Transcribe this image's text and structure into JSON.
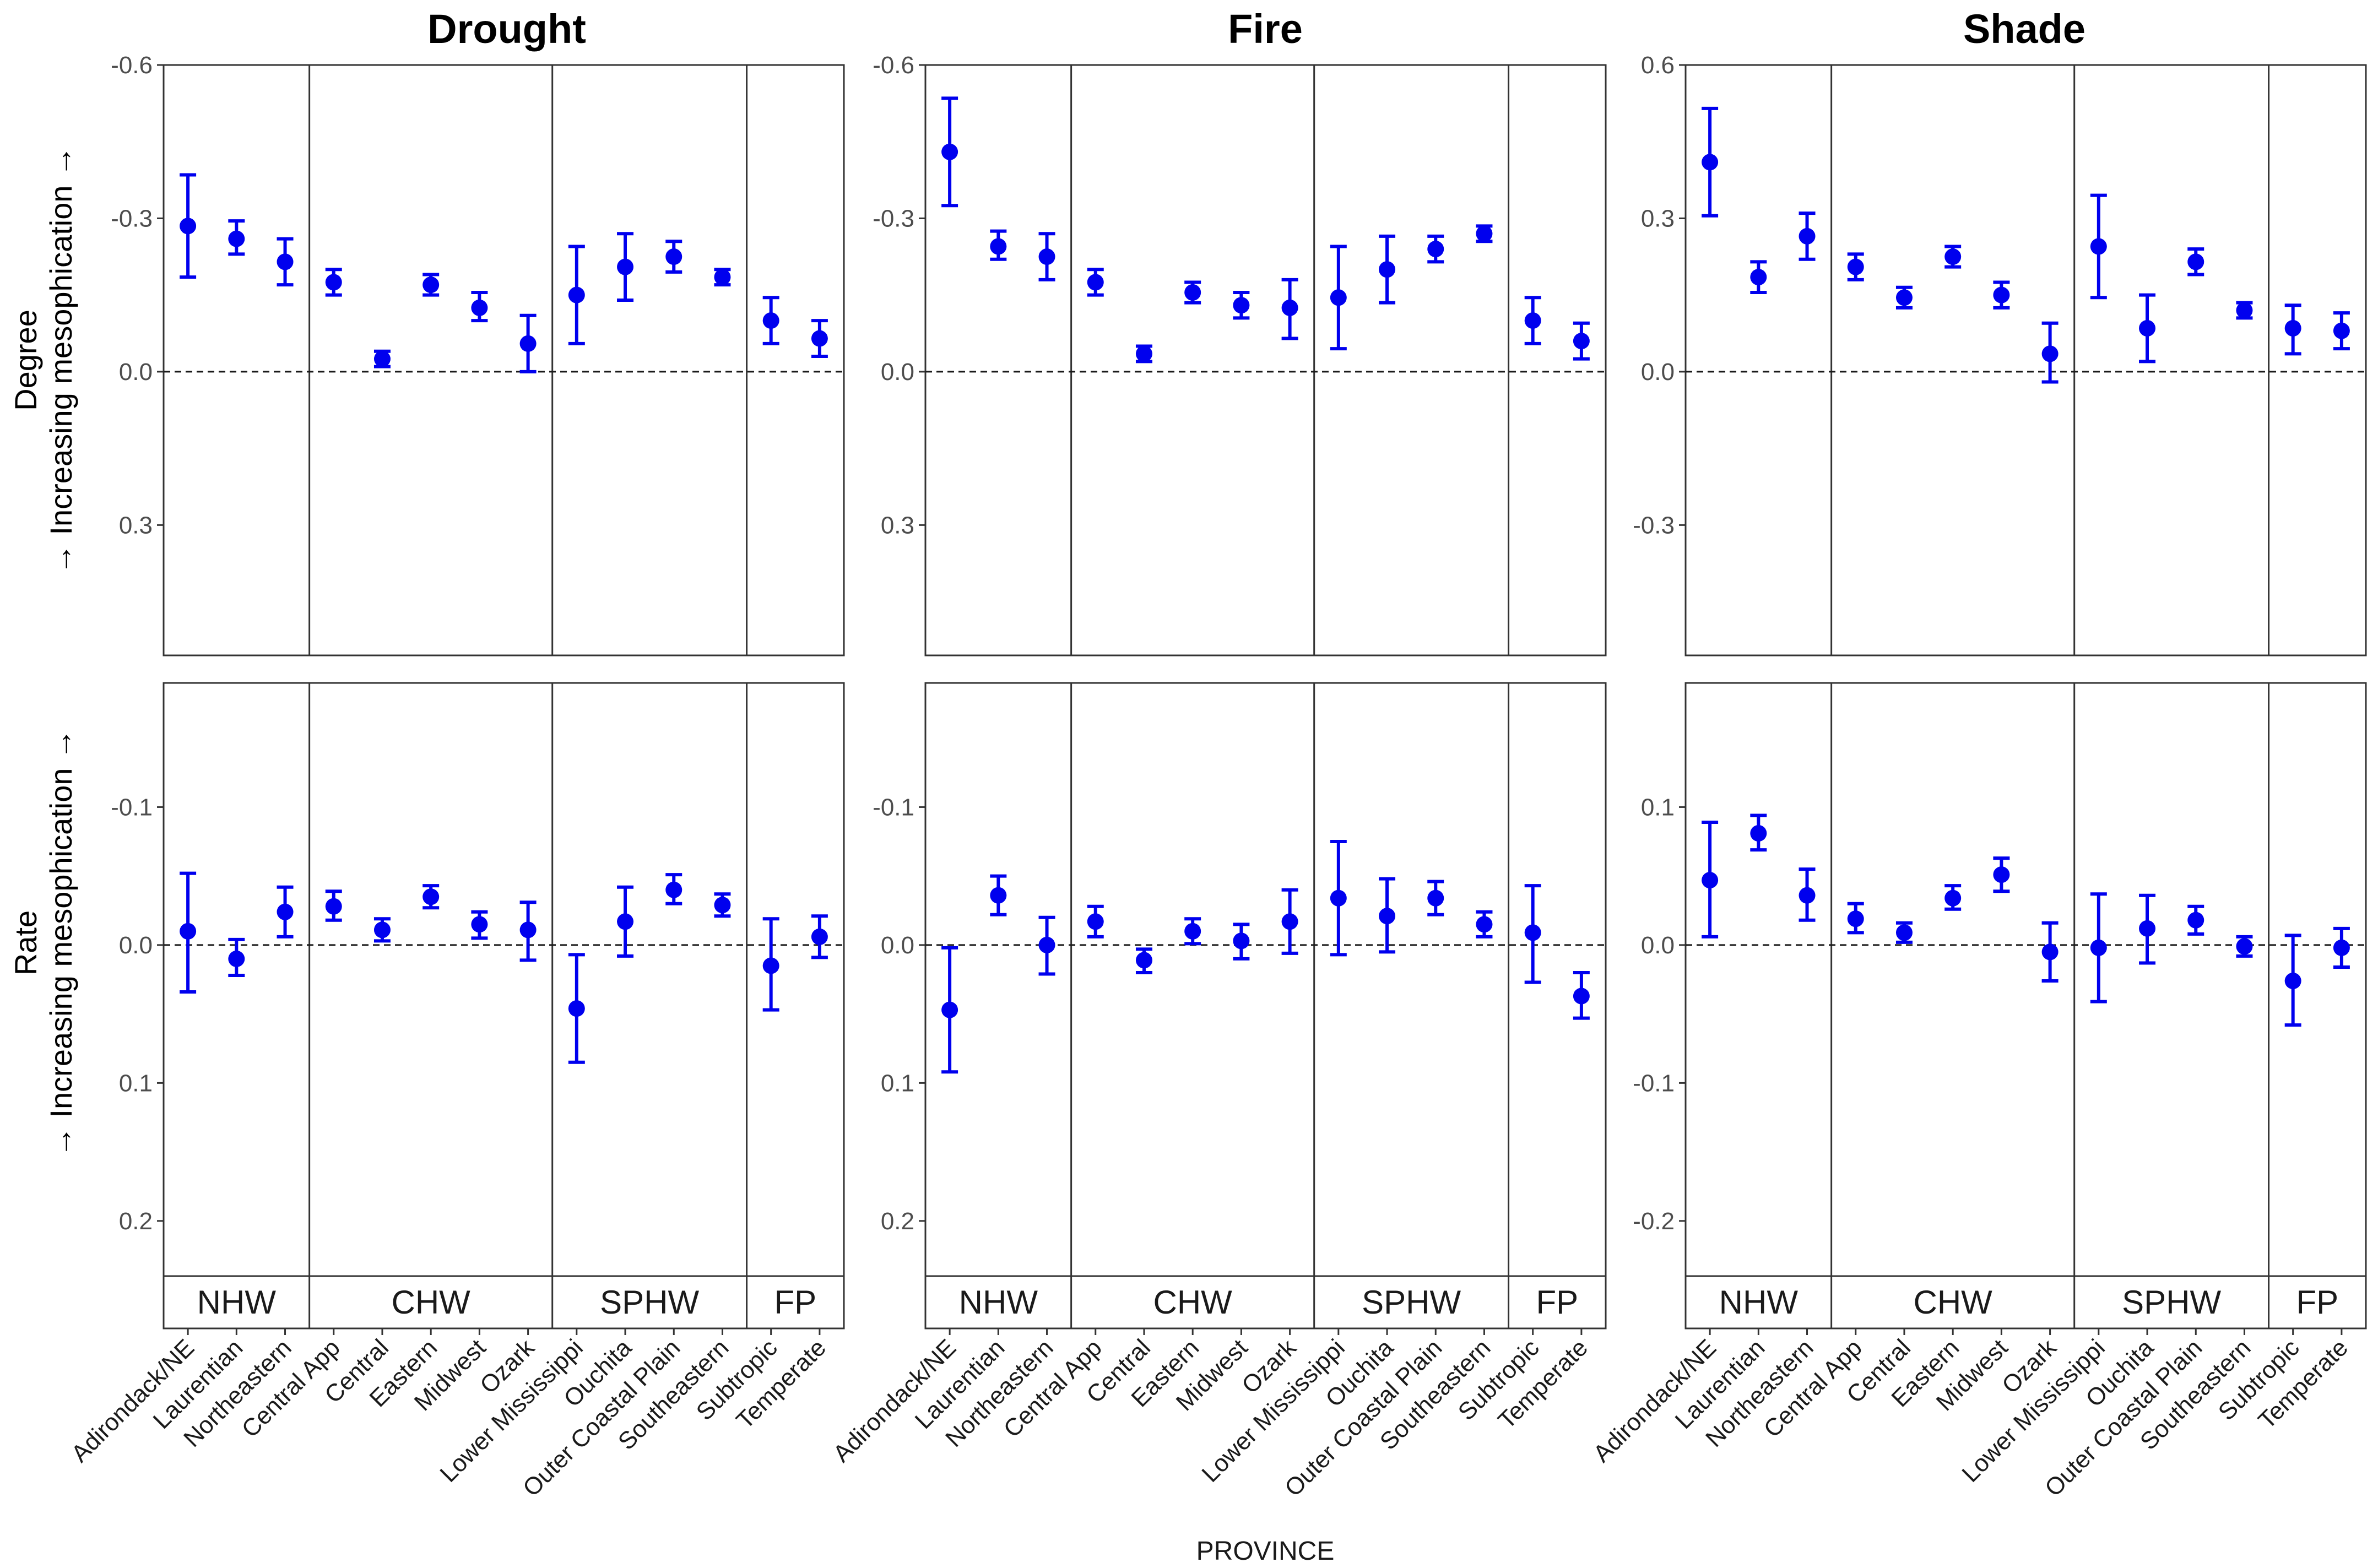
{
  "chart_data": {
    "type": "scatter",
    "subtype": "point-errorbar-facet",
    "columns": [
      "Drought",
      "Fire",
      "Shade"
    ],
    "rows": [
      {
        "key": "degree",
        "label_top": "Degree",
        "label_bottom": "→ Increasing mesophication →"
      },
      {
        "key": "rate",
        "label_top": "Rate",
        "label_bottom": "→ Increasing mesophication →"
      }
    ],
    "xlabel": "PROVINCE",
    "groups": [
      {
        "name": "NHW",
        "count": 3
      },
      {
        "name": "CHW",
        "count": 5
      },
      {
        "name": "SPHW",
        "count": 4
      },
      {
        "name": "FP",
        "count": 2
      }
    ],
    "categories": [
      "Adirondack/NE",
      "Laurentian",
      "Northeastern",
      "Central App",
      "Central",
      "Eastern",
      "Midwest",
      "Ozark",
      "Lower Mississippi",
      "Ouchita",
      "Outer Coastal Plain",
      "Southeastern",
      "Subtropic",
      "Temperate"
    ],
    "colors": {
      "point": "#0000ee",
      "frame": "#333333",
      "grid": "#333333",
      "strip_bg": "#ffffff"
    },
    "panels": [
      {
        "column": "Drought",
        "row": "degree",
        "reversed": true,
        "ylim": [
          -0.6,
          0.555
        ],
        "ticks": [
          -0.6,
          -0.3,
          0.0,
          0.3
        ],
        "tick_labels": [
          "-0.6",
          "-0.3",
          "0.0",
          "0.3"
        ],
        "mean": [
          -0.285,
          -0.26,
          -0.215,
          -0.175,
          -0.025,
          -0.17,
          -0.125,
          -0.055,
          -0.15,
          -0.205,
          -0.225,
          -0.185,
          -0.1,
          -0.065
        ],
        "lower": [
          -0.385,
          -0.295,
          -0.26,
          -0.2,
          -0.04,
          -0.19,
          -0.155,
          -0.11,
          -0.245,
          -0.27,
          -0.255,
          -0.2,
          -0.145,
          -0.1
        ],
        "upper": [
          -0.185,
          -0.23,
          -0.17,
          -0.15,
          -0.01,
          -0.15,
          -0.1,
          0.0,
          -0.055,
          -0.14,
          -0.195,
          -0.17,
          -0.055,
          -0.03
        ]
      },
      {
        "column": "Fire",
        "row": "degree",
        "reversed": true,
        "ylim": [
          -0.6,
          0.555
        ],
        "ticks": [
          -0.6,
          -0.3,
          0.0,
          0.3
        ],
        "tick_labels": [
          "-0.6",
          "-0.3",
          "0.0",
          "0.3"
        ],
        "mean": [
          -0.43,
          -0.245,
          -0.225,
          -0.175,
          -0.035,
          -0.155,
          -0.13,
          -0.125,
          -0.145,
          -0.2,
          -0.24,
          -0.27,
          -0.1,
          -0.06
        ],
        "lower": [
          -0.535,
          -0.275,
          -0.27,
          -0.2,
          -0.05,
          -0.175,
          -0.155,
          -0.18,
          -0.245,
          -0.265,
          -0.265,
          -0.285,
          -0.145,
          -0.095
        ],
        "upper": [
          -0.325,
          -0.22,
          -0.18,
          -0.15,
          -0.02,
          -0.135,
          -0.105,
          -0.065,
          -0.045,
          -0.135,
          -0.215,
          -0.255,
          -0.055,
          -0.025
        ]
      },
      {
        "column": "Shade",
        "row": "degree",
        "reversed": false,
        "ylim": [
          -0.555,
          0.6
        ],
        "ticks": [
          0.6,
          0.3,
          0.0,
          -0.3
        ],
        "tick_labels": [
          "0.6",
          "0.3",
          "0.0",
          "-0.3"
        ],
        "mean": [
          0.41,
          0.185,
          0.265,
          0.205,
          0.145,
          0.225,
          0.15,
          0.035,
          0.245,
          0.085,
          0.215,
          0.12,
          0.085,
          0.08
        ],
        "lower": [
          0.305,
          0.155,
          0.22,
          0.18,
          0.125,
          0.205,
          0.125,
          -0.02,
          0.145,
          0.02,
          0.19,
          0.105,
          0.035,
          0.045
        ],
        "upper": [
          0.515,
          0.215,
          0.31,
          0.23,
          0.165,
          0.245,
          0.175,
          0.095,
          0.345,
          0.15,
          0.24,
          0.135,
          0.13,
          0.115
        ]
      },
      {
        "column": "Drought",
        "row": "rate",
        "reversed": true,
        "ylim": [
          -0.19,
          0.24
        ],
        "ticks": [
          -0.1,
          0.0,
          0.1,
          0.2
        ],
        "tick_labels": [
          "-0.1",
          "0.0",
          "0.1",
          "0.2"
        ],
        "mean": [
          -0.01,
          0.01,
          -0.024,
          -0.028,
          -0.011,
          -0.035,
          -0.015,
          -0.011,
          0.046,
          -0.017,
          -0.04,
          -0.029,
          0.015,
          -0.006
        ],
        "lower": [
          -0.052,
          -0.004,
          -0.042,
          -0.039,
          -0.019,
          -0.043,
          -0.024,
          -0.031,
          0.007,
          -0.042,
          -0.051,
          -0.037,
          -0.019,
          -0.021
        ],
        "upper": [
          0.034,
          0.022,
          -0.006,
          -0.018,
          -0.003,
          -0.027,
          -0.005,
          0.011,
          0.085,
          0.008,
          -0.03,
          -0.021,
          0.047,
          0.009
        ]
      },
      {
        "column": "Fire",
        "row": "rate",
        "reversed": true,
        "ylim": [
          -0.19,
          0.24
        ],
        "ticks": [
          -0.1,
          0.0,
          0.1,
          0.2
        ],
        "tick_labels": [
          "-0.1",
          "0.0",
          "0.1",
          "0.2"
        ],
        "mean": [
          0.047,
          -0.036,
          0.0,
          -0.017,
          0.011,
          -0.01,
          -0.003,
          -0.017,
          -0.034,
          -0.021,
          -0.034,
          -0.015,
          -0.009,
          0.037
        ],
        "lower": [
          0.002,
          -0.05,
          -0.02,
          -0.028,
          0.003,
          -0.019,
          -0.015,
          -0.04,
          -0.075,
          -0.048,
          -0.046,
          -0.024,
          -0.043,
          0.02
        ],
        "upper": [
          0.092,
          -0.022,
          0.021,
          -0.006,
          0.02,
          -0.001,
          0.01,
          0.006,
          0.007,
          0.005,
          -0.022,
          -0.006,
          0.027,
          0.053
        ]
      },
      {
        "column": "Shade",
        "row": "rate",
        "reversed": false,
        "ylim": [
          -0.24,
          0.19
        ],
        "ticks": [
          0.1,
          0.0,
          -0.1,
          -0.2
        ],
        "tick_labels": [
          "0.1",
          "0.0",
          "-0.1",
          "-0.2"
        ],
        "mean": [
          0.047,
          0.081,
          0.036,
          0.019,
          0.009,
          0.034,
          0.051,
          -0.005,
          -0.002,
          0.012,
          0.018,
          -0.001,
          -0.026,
          -0.002
        ],
        "lower": [
          0.006,
          0.069,
          0.018,
          0.009,
          0.002,
          0.026,
          0.039,
          -0.026,
          -0.041,
          -0.013,
          0.008,
          -0.008,
          -0.058,
          -0.016
        ],
        "upper": [
          0.089,
          0.094,
          0.055,
          0.03,
          0.016,
          0.043,
          0.063,
          0.016,
          0.037,
          0.036,
          0.028,
          0.006,
          0.007,
          0.012
        ]
      }
    ]
  }
}
